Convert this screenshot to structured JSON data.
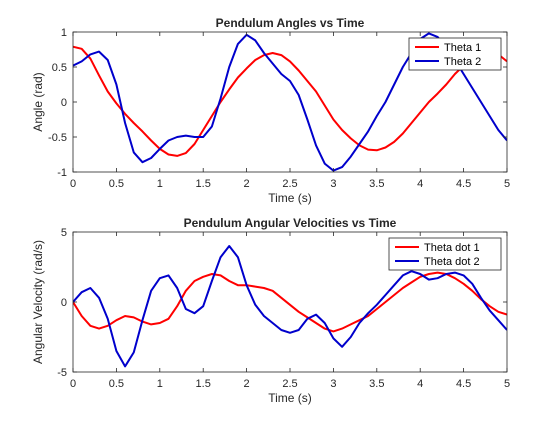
{
  "chart_data": [
    {
      "type": "line",
      "title": "Pendulum Angles vs Time",
      "xlabel": "Time (s)",
      "ylabel": "Angle (rad)",
      "xlim": [
        0,
        5
      ],
      "ylim": [
        -1,
        1
      ],
      "xticks": [
        "0",
        "0.5",
        "1",
        "1.5",
        "2",
        "2.5",
        "3",
        "3.5",
        "4",
        "4.5",
        "5"
      ],
      "yticks": [
        "-1",
        "-0.5",
        "0",
        "0.5",
        "1"
      ],
      "grid": false,
      "legend_position": "top-right",
      "series": [
        {
          "name": "Theta 1",
          "color": "#ff0000",
          "x": [
            0,
            0.1,
            0.2,
            0.3,
            0.4,
            0.5,
            0.6,
            0.7,
            0.8,
            0.9,
            1.0,
            1.1,
            1.2,
            1.3,
            1.4,
            1.5,
            1.6,
            1.7,
            1.8,
            1.9,
            2.0,
            2.1,
            2.2,
            2.3,
            2.4,
            2.5,
            2.6,
            2.7,
            2.8,
            2.9,
            3.0,
            3.1,
            3.2,
            3.3,
            3.4,
            3.5,
            3.6,
            3.7,
            3.8,
            3.9,
            4.0,
            4.1,
            4.2,
            4.3,
            4.4,
            4.5,
            4.6,
            4.7,
            4.8,
            4.9,
            5.0
          ],
          "y": [
            0.79,
            0.76,
            0.62,
            0.38,
            0.15,
            -0.02,
            -0.17,
            -0.3,
            -0.42,
            -0.55,
            -0.67,
            -0.75,
            -0.77,
            -0.73,
            -0.6,
            -0.4,
            -0.2,
            0.0,
            0.18,
            0.35,
            0.48,
            0.6,
            0.67,
            0.7,
            0.67,
            0.58,
            0.45,
            0.3,
            0.15,
            -0.05,
            -0.25,
            -0.4,
            -0.52,
            -0.62,
            -0.68,
            -0.69,
            -0.65,
            -0.57,
            -0.45,
            -0.3,
            -0.15,
            0.0,
            0.12,
            0.25,
            0.4,
            0.52,
            0.62,
            0.7,
            0.72,
            0.68,
            0.58
          ]
        },
        {
          "name": "Theta 2",
          "color": "#0000cc",
          "x": [
            0,
            0.1,
            0.2,
            0.3,
            0.4,
            0.5,
            0.6,
            0.7,
            0.8,
            0.9,
            1.0,
            1.1,
            1.2,
            1.3,
            1.4,
            1.5,
            1.6,
            1.7,
            1.8,
            1.9,
            2.0,
            2.1,
            2.2,
            2.3,
            2.4,
            2.5,
            2.6,
            2.7,
            2.8,
            2.9,
            3.0,
            3.1,
            3.2,
            3.3,
            3.4,
            3.5,
            3.6,
            3.7,
            3.8,
            3.9,
            4.0,
            4.1,
            4.2,
            4.3,
            4.4,
            4.5,
            4.6,
            4.7,
            4.8,
            4.9,
            5.0
          ],
          "y": [
            0.52,
            0.58,
            0.68,
            0.72,
            0.6,
            0.25,
            -0.3,
            -0.72,
            -0.86,
            -0.8,
            -0.67,
            -0.55,
            -0.5,
            -0.48,
            -0.5,
            -0.5,
            -0.35,
            0.05,
            0.5,
            0.83,
            0.96,
            0.88,
            0.7,
            0.55,
            0.4,
            0.3,
            0.1,
            -0.25,
            -0.62,
            -0.88,
            -0.98,
            -0.93,
            -0.78,
            -0.6,
            -0.42,
            -0.2,
            0.0,
            0.25,
            0.5,
            0.7,
            0.9,
            0.98,
            0.93,
            0.78,
            0.6,
            0.4,
            0.2,
            0.0,
            -0.2,
            -0.4,
            -0.55
          ]
        }
      ]
    },
    {
      "type": "line",
      "title": "Pendulum Angular Velocities vs Time",
      "xlabel": "Time (s)",
      "ylabel": "Angular Velocity (rad/s)",
      "xlim": [
        0,
        5
      ],
      "ylim": [
        -5,
        5
      ],
      "xticks": [
        "0",
        "0.5",
        "1",
        "1.5",
        "2",
        "2.5",
        "3",
        "3.5",
        "4",
        "4.5",
        "5"
      ],
      "yticks": [
        "-5",
        "0",
        "5"
      ],
      "grid": false,
      "legend_position": "top-right",
      "series": [
        {
          "name": "Theta dot 1",
          "color": "#ff0000",
          "x": [
            0,
            0.1,
            0.2,
            0.3,
            0.4,
            0.5,
            0.6,
            0.7,
            0.8,
            0.9,
            1.0,
            1.1,
            1.2,
            1.3,
            1.4,
            1.5,
            1.6,
            1.7,
            1.8,
            1.9,
            2.0,
            2.1,
            2.2,
            2.3,
            2.4,
            2.5,
            2.6,
            2.7,
            2.8,
            2.9,
            3.0,
            3.1,
            3.2,
            3.3,
            3.4,
            3.5,
            3.6,
            3.7,
            3.8,
            3.9,
            4.0,
            4.1,
            4.2,
            4.3,
            4.4,
            4.5,
            4.6,
            4.7,
            4.8,
            4.9,
            5.0
          ],
          "y": [
            0.0,
            -1.0,
            -1.7,
            -1.9,
            -1.7,
            -1.3,
            -1.0,
            -1.1,
            -1.4,
            -1.6,
            -1.5,
            -1.2,
            -0.3,
            0.8,
            1.5,
            1.8,
            2.0,
            1.9,
            1.5,
            1.2,
            1.2,
            1.1,
            1.0,
            0.8,
            0.3,
            -0.2,
            -0.7,
            -1.1,
            -1.5,
            -1.9,
            -2.1,
            -1.9,
            -1.6,
            -1.3,
            -1.0,
            -0.5,
            0.0,
            0.5,
            1.0,
            1.4,
            1.8,
            2.0,
            2.1,
            2.0,
            1.7,
            1.3,
            0.8,
            0.2,
            -0.3,
            -0.7,
            -0.9
          ]
        },
        {
          "name": "Theta dot 2",
          "color": "#0000cc",
          "x": [
            0,
            0.1,
            0.2,
            0.3,
            0.4,
            0.5,
            0.6,
            0.7,
            0.8,
            0.9,
            1.0,
            1.1,
            1.2,
            1.3,
            1.4,
            1.5,
            1.6,
            1.7,
            1.8,
            1.9,
            2.0,
            2.1,
            2.2,
            2.3,
            2.4,
            2.5,
            2.6,
            2.7,
            2.8,
            2.9,
            3.0,
            3.1,
            3.2,
            3.3,
            3.4,
            3.5,
            3.6,
            3.7,
            3.8,
            3.9,
            4.0,
            4.1,
            4.2,
            4.3,
            4.4,
            4.5,
            4.6,
            4.7,
            4.8,
            4.9,
            5.0
          ],
          "y": [
            0.0,
            0.7,
            1.0,
            0.3,
            -1.2,
            -3.5,
            -4.6,
            -3.6,
            -1.3,
            0.8,
            1.7,
            1.9,
            1.0,
            -0.5,
            -0.8,
            -0.3,
            1.5,
            3.2,
            4.0,
            3.2,
            1.2,
            -0.2,
            -1.0,
            -1.5,
            -2.0,
            -2.2,
            -2.0,
            -1.2,
            -0.9,
            -1.5,
            -2.6,
            -3.2,
            -2.5,
            -1.5,
            -0.8,
            -0.2,
            0.5,
            1.2,
            1.9,
            2.2,
            2.0,
            1.6,
            1.7,
            2.0,
            2.1,
            1.9,
            1.3,
            0.3,
            -0.6,
            -1.3,
            -2.0
          ]
        }
      ]
    }
  ]
}
